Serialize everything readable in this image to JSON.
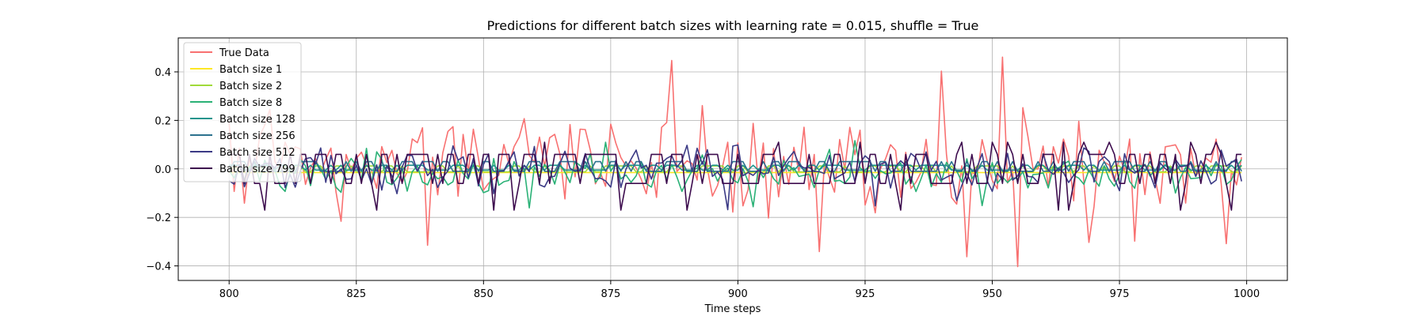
{
  "chart_data": {
    "type": "line",
    "title": "Predictions for different batch sizes with learning rate = 0.015, shuffle = True",
    "xlabel": "Time steps",
    "ylabel": "",
    "xlim": [
      790,
      1008
    ],
    "ylim": [
      -0.46,
      0.54
    ],
    "xticks": [
      800,
      825,
      850,
      875,
      900,
      925,
      950,
      975,
      1000
    ],
    "yticks": [
      -0.4,
      -0.2,
      0.0,
      0.2,
      0.4
    ],
    "ytick_labels": [
      "−0.4",
      "−0.2",
      "0.0",
      "0.2",
      "0.4"
    ],
    "grid": true,
    "legend_position": "top-left",
    "x_start": 800,
    "x_end": 999,
    "series": [
      {
        "name": "True Data",
        "color": "#f87171",
        "kind": "random",
        "seed": 11,
        "mean": 0.02,
        "amp": 0.18,
        "min": -0.41,
        "max": 0.5
      },
      {
        "name": "Batch size 1",
        "color": "#fde725",
        "kind": "constant",
        "value": -0.015
      },
      {
        "name": "Batch size 2",
        "color": "#a0da39",
        "kind": "alternate",
        "base": 0.0,
        "amp": 0.012,
        "seed": 3
      },
      {
        "name": "Batch size 8",
        "color": "#2ab176",
        "kind": "random",
        "seed": 5,
        "mean": -0.02,
        "amp": 0.07,
        "min": -0.17,
        "max": 0.12
      },
      {
        "name": "Batch size 128",
        "color": "#1f948c",
        "kind": "alternate",
        "base": 0.005,
        "amp": 0.01,
        "seed": 7
      },
      {
        "name": "Batch size 256",
        "color": "#2c728e",
        "kind": "alternate",
        "base": 0.01,
        "amp": 0.02,
        "seed": 9
      },
      {
        "name": "Batch size 512",
        "color": "#3b3a85",
        "kind": "random",
        "seed": 21,
        "mean": 0.0,
        "amp": 0.08,
        "min": -0.18,
        "max": 0.11
      },
      {
        "name": "Batch size 799",
        "color": "#3d0c4e",
        "kind": "binary",
        "seed": 31,
        "high": 0.06,
        "low": -0.06,
        "min": -0.17,
        "max": 0.11
      }
    ]
  }
}
